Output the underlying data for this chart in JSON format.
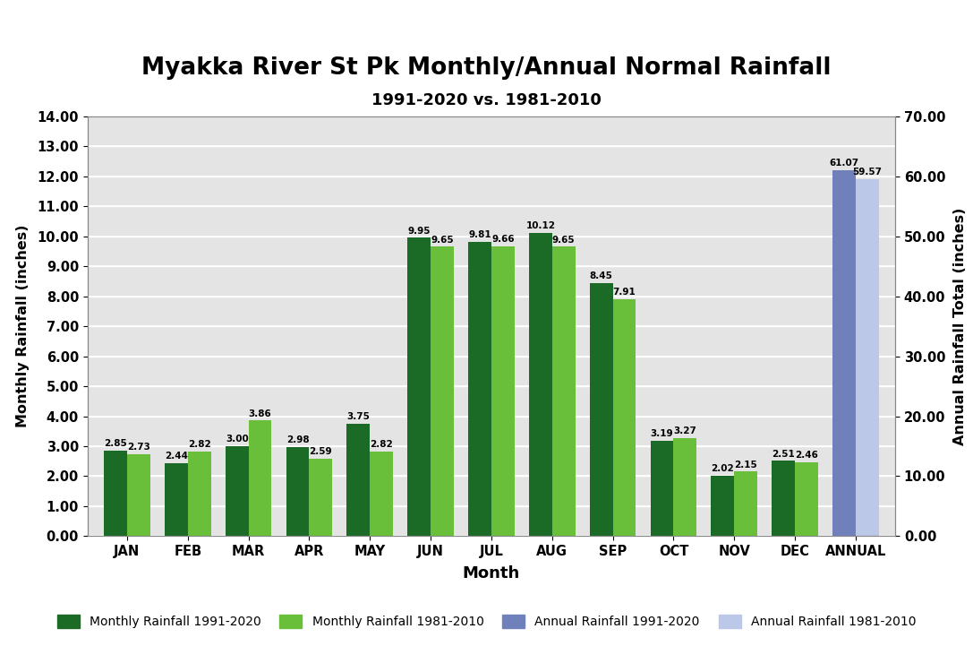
{
  "title": "Myakka River St Pk Monthly/Annual Normal Rainfall",
  "subtitle": "1991-2020 vs. 1981-2010",
  "xlabel": "Month",
  "ylabel_left": "Monthly Rainfall (inches)",
  "ylabel_right": "Annual Rainfall Total (inches)",
  "months": [
    "JAN",
    "FEB",
    "MAR",
    "APR",
    "MAY",
    "JUN",
    "JUL",
    "AUG",
    "SEP",
    "OCT",
    "NOV",
    "DEC",
    "ANNUAL"
  ],
  "monthly_1991_2020": [
    2.85,
    2.44,
    3.0,
    2.98,
    3.75,
    9.95,
    9.81,
    10.12,
    8.45,
    3.19,
    2.02,
    2.51
  ],
  "monthly_1981_2010": [
    2.73,
    2.82,
    3.86,
    2.59,
    2.82,
    9.65,
    9.66,
    9.65,
    7.91,
    3.27,
    2.15,
    2.46
  ],
  "annual_1991_2020": 61.07,
  "annual_1981_2010": 59.57,
  "color_monthly_new": "#1b6b27",
  "color_monthly_old": "#6abf3a",
  "color_annual_new": "#7080bb",
  "color_annual_old": "#bcc8e8",
  "ylim_left": [
    0.0,
    14.0
  ],
  "ylim_right": [
    0.0,
    70.0
  ],
  "yticks_left": [
    0.0,
    1.0,
    2.0,
    3.0,
    4.0,
    5.0,
    6.0,
    7.0,
    8.0,
    9.0,
    10.0,
    11.0,
    12.0,
    13.0,
    14.0
  ],
  "yticks_right": [
    0.0,
    10.0,
    20.0,
    30.0,
    40.0,
    50.0,
    60.0,
    70.0
  ],
  "legend_labels": [
    "Monthly Rainfall 1991-2020",
    "Monthly Rainfall 1981-2010",
    "Annual Rainfall 1991-2020",
    "Annual Rainfall 1981-2010"
  ],
  "bar_width": 0.38,
  "bg_color": "#e4e4e4",
  "grid_color": "#ffffff",
  "grid_color2": "#cccccc"
}
